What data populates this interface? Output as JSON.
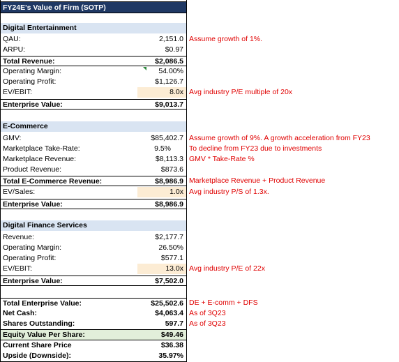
{
  "title": "FY24E's Value of Firm (SOTP)",
  "digital_entertainment": {
    "header": "Digital Entertainment",
    "qau_label": "QAU:",
    "qau_value": "2,151.0",
    "arpu_label": "ARPU:",
    "arpu_value": "$0.97",
    "total_revenue_label": "Total Revenue:",
    "total_revenue_value": "$2,086.5",
    "op_margin_label": "Operating Margin:",
    "op_margin_value": "54.00%",
    "op_profit_label": "Operating Profit:",
    "op_profit_value": "$1,126.7",
    "ev_ebit_label": "EV/EBIT:",
    "ev_ebit_value": "8.0x",
    "ev_label": "Enterprise Value:",
    "ev_value": "$9,013.7",
    "note_qau": "Assume growth of 1%.",
    "note_ev_ebit": "Avg industry P/E multiple of 20x"
  },
  "ecommerce": {
    "header": "E-Commerce",
    "gmv_label": "GMV:",
    "gmv_value": "$85,402.7",
    "take_rate_label": "Marketplace Take-Rate:",
    "take_rate_value": "9.5%",
    "mkt_rev_label": "Marketplace Revenue:",
    "mkt_rev_value": "$8,113.3",
    "prod_rev_label": "Product Revenue:",
    "prod_rev_value": "$873.6",
    "total_label": "Total E-Commerce Revenue:",
    "total_value": "$8,986.9",
    "ev_sales_label": "EV/Sales:",
    "ev_sales_value": "1.0x",
    "ev_label": "Enterprise Value:",
    "ev_value": "$8,986.9",
    "note_gmv": "Assume growth of 9%. A growth acceleration from FY23",
    "note_take_rate": "To decline from FY23 due to investments",
    "note_mkt_rev": "GMV * Take-Rate %",
    "note_total": "Marketplace Revenue + Product Revenue",
    "note_ev_sales": "Avg industry P/S of 1.3x."
  },
  "dfs": {
    "header": "Digital Finance Services",
    "revenue_label": "Revenue:",
    "revenue_value": "$2,177.7",
    "op_margin_label": "Operating Margin:",
    "op_margin_value": "26.50%",
    "op_profit_label": "Operating Profit:",
    "op_profit_value": "$577.1",
    "ev_ebit_label": "EV/EBIT:",
    "ev_ebit_value": "13.0x",
    "ev_label": "Enterprise Value:",
    "ev_value": "$7,502.0",
    "note_ev_ebit": "Avg industry P/E of 22x"
  },
  "summary": {
    "total_ev_label": "Total Enterprise Value:",
    "total_ev_value": "$25,502.6",
    "net_cash_label": "Net Cash:",
    "net_cash_value": "$4,063.4",
    "shares_label": "Shares Outstanding:",
    "shares_value": "597.7",
    "eq_per_share_label": "Equity Value Per Share:",
    "eq_per_share_value": "$49.46",
    "price_label": "Current Share Price",
    "price_value": "$36.38",
    "upside_label": "Upside (Downside):",
    "upside_value": "35.97%",
    "note_total_ev": "DE + E-comm + DFS",
    "note_net_cash": "As of 3Q23",
    "note_shares": "As of 3Q23"
  }
}
